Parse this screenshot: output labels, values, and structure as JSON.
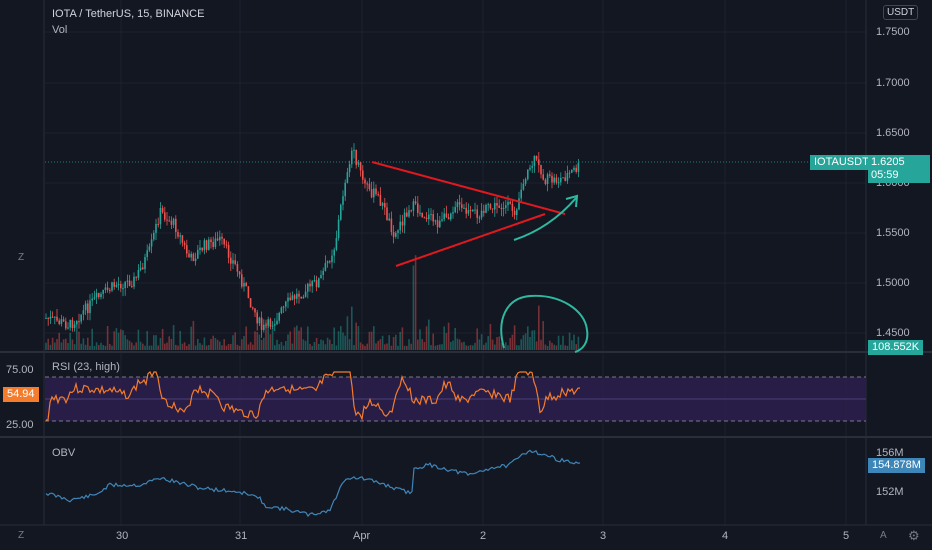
{
  "header": {
    "symbol_title": "IOTA / TetherUS, 15, BINANCE",
    "vol_label": "Vol",
    "currency_button": "USDT"
  },
  "price_axis": {
    "ticks": [
      "1.7500",
      "1.7000",
      "1.6500",
      "1.5500",
      "1.5000",
      "1.4500"
    ],
    "partial_tick": "1.6000"
  },
  "price_tag": {
    "symbol": "IOTAUSDT",
    "value": "1.6205",
    "countdown": "05:59",
    "color": "#26a69a"
  },
  "volume_tag": {
    "value": "108.552K",
    "color": "#26a69a"
  },
  "rsi": {
    "label": "RSI (23, high)",
    "value_tag": "54.94",
    "ticks": [
      "75.00",
      "25.00"
    ],
    "color": "#f57c2c",
    "band_color": "#2a1e4a"
  },
  "obv": {
    "label": "OBV",
    "ticks": [
      "156M",
      "152M"
    ],
    "value_tag": "154.878M",
    "color": "#3f86b8"
  },
  "time_axis": {
    "labels": [
      "30",
      "31",
      "Apr",
      "2",
      "3",
      "4",
      "5"
    ]
  },
  "corner_buttons": {
    "z_left": "Z",
    "z_right": "Z",
    "a_button": "A",
    "gear": "⚙"
  },
  "colors": {
    "up": "#26a69a",
    "down": "#ef5350",
    "annotation_red": "#e0181f",
    "annotation_teal": "#2fb8a0"
  }
}
